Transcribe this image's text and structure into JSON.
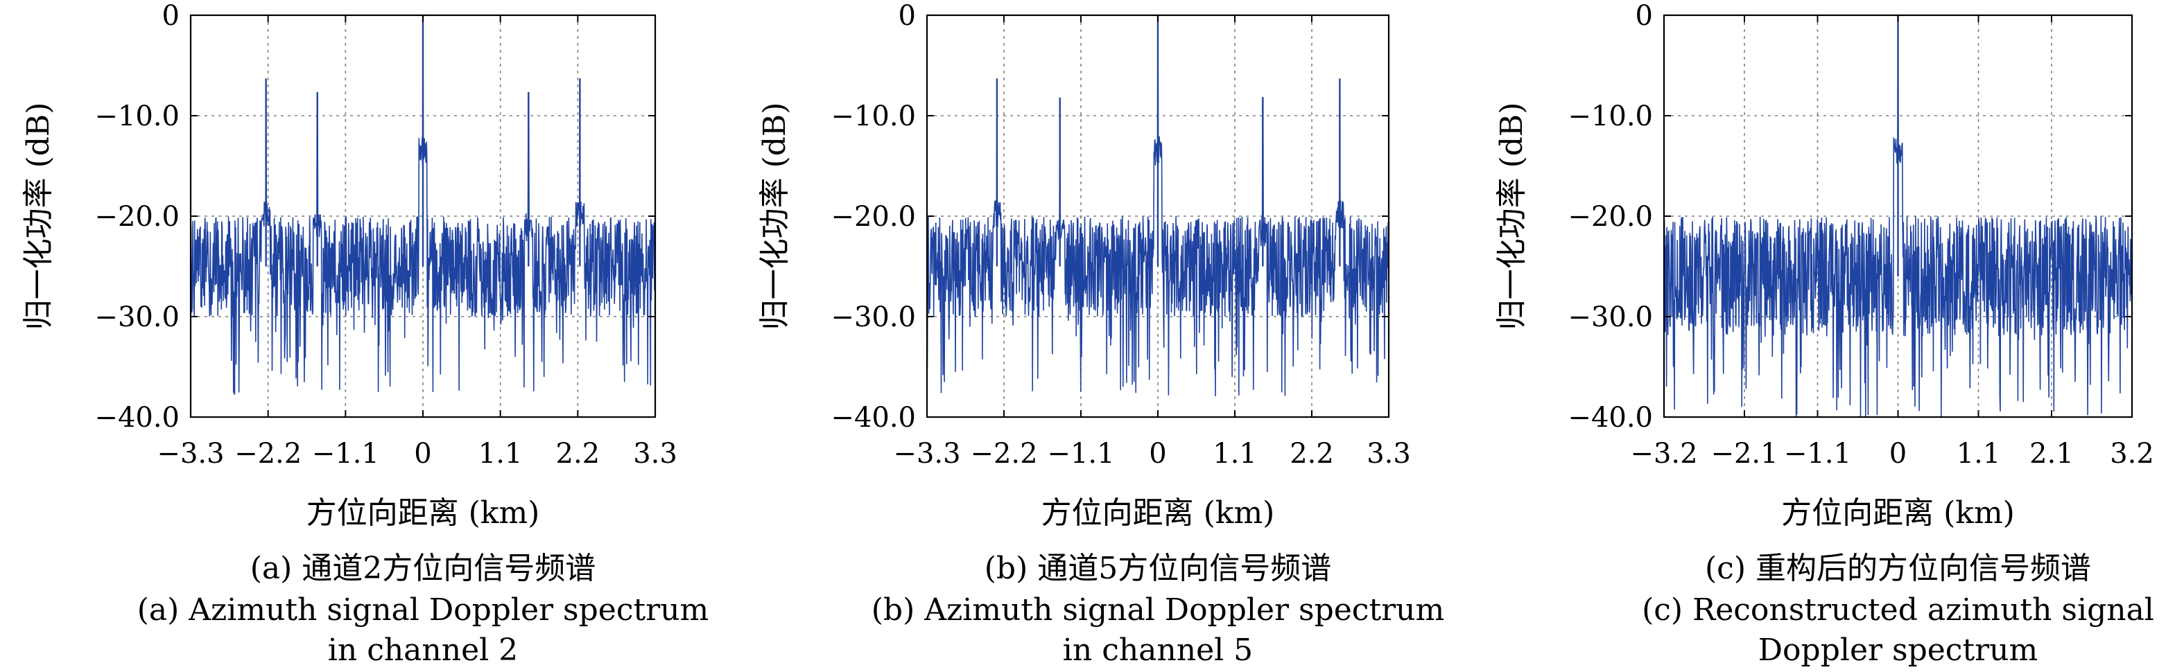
{
  "colors": {
    "signal": "#1f43a0",
    "axis": "#000000",
    "grid": "#7f7f7f"
  },
  "chart_data": [
    {
      "type": "line",
      "xlabel": "方位向距离 (km)",
      "ylabel": "归一化功率 (dB)",
      "xlim": [
        -3.3,
        3.3
      ],
      "ylim": [
        -40,
        0
      ],
      "xticks": [
        -3.3,
        -2.2,
        -1.1,
        0,
        1.1,
        2.2,
        3.3
      ],
      "xtick_labels": [
        "−3.3",
        "−2.2",
        "−1.1",
        "0",
        "1.1",
        "2.2",
        "3.3"
      ],
      "yticks": [
        0,
        -10,
        -20,
        -30,
        -40
      ],
      "ytick_labels": [
        "0",
        "−10.0",
        "−20.0",
        "−30.0",
        "−40.0"
      ],
      "grid": true,
      "caption_cn": "(a) 通道2方位向信号频谱",
      "caption_en_line1": "(a) Azimuth signal Doppler spectrum",
      "caption_en_line2": "in channel 2",
      "noise_floor_db": -25,
      "noise_spread_db": 5,
      "peaks": [
        {
          "x": -2.23,
          "y": -6.3
        },
        {
          "x": -1.5,
          "y": -7.7
        },
        {
          "x": 0.0,
          "y": 0.0
        },
        {
          "x": 1.5,
          "y": -7.7
        },
        {
          "x": 2.23,
          "y": -6.3
        }
      ]
    },
    {
      "type": "line",
      "xlabel": "方位向距离 (km)",
      "ylabel": "归一化功率 (dB)",
      "xlim": [
        -3.3,
        3.3
      ],
      "ylim": [
        -40,
        0
      ],
      "xticks": [
        -3.3,
        -2.2,
        -1.1,
        0,
        1.1,
        2.2,
        3.3
      ],
      "xtick_labels": [
        "−3.3",
        "−2.2",
        "−1.1",
        "0",
        "1.1",
        "2.2",
        "3.3"
      ],
      "yticks": [
        0,
        -10,
        -20,
        -30,
        -40
      ],
      "ytick_labels": [
        "0",
        "−10.0",
        "−20.0",
        "−30.0",
        "−40.0"
      ],
      "grid": true,
      "caption_cn": "(b) 通道5方位向信号频谱",
      "caption_en_line1": "(b) Azimuth signal Doppler spectrum",
      "caption_en_line2": "in channel 5",
      "noise_floor_db": -25,
      "noise_spread_db": 5,
      "peaks": [
        {
          "x": -2.3,
          "y": -6.3
        },
        {
          "x": -1.4,
          "y": -8.2
        },
        {
          "x": 0.0,
          "y": 0.0
        },
        {
          "x": 1.5,
          "y": -8.2
        },
        {
          "x": 2.6,
          "y": -6.3
        }
      ]
    },
    {
      "type": "line",
      "xlabel": "方位向距离 (km)",
      "ylabel": "归一化功率 (dB)",
      "xlim": [
        -3.2,
        3.2
      ],
      "ylim": [
        -40,
        0
      ],
      "xticks": [
        -3.2,
        -2.1,
        -1.1,
        0,
        1.1,
        2.1,
        3.2
      ],
      "xtick_labels": [
        "−3.2",
        "−2.1",
        "−1.1",
        "0",
        "1.1",
        "2.1",
        "3.2"
      ],
      "yticks": [
        0,
        -10,
        -20,
        -30,
        -40
      ],
      "ytick_labels": [
        "0",
        "−10.0",
        "−20.0",
        "−30.0",
        "−40.0"
      ],
      "grid": true,
      "caption_cn": "(c) 重构后的方位向信号频谱",
      "caption_en_line1": "(c) Reconstructed azimuth signal",
      "caption_en_line2": "Doppler spectrum",
      "noise_floor_db": -26,
      "noise_spread_db": 6,
      "peaks": [
        {
          "x": 0.0,
          "y": 0.0
        }
      ]
    }
  ]
}
